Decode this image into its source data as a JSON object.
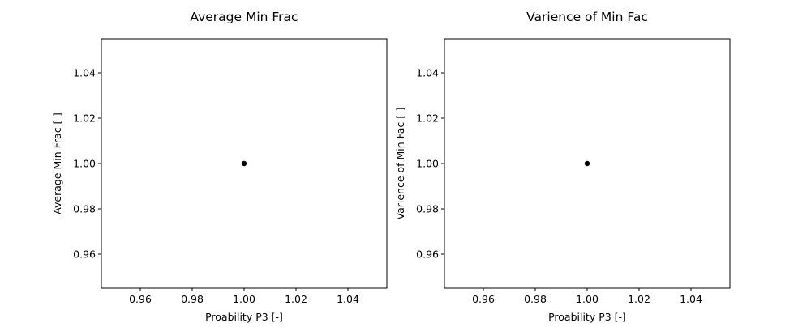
{
  "chart_data": [
    {
      "type": "scatter",
      "title": "Average Min Frac",
      "xlabel": "Proability P3 [-]",
      "ylabel": "Average Min Frac [-]",
      "xlim": [
        0.945,
        1.055
      ],
      "ylim": [
        0.945,
        1.055
      ],
      "xticks": [
        "0.96",
        "0.98",
        "1.00",
        "1.02",
        "1.04"
      ],
      "yticks": [
        "0.96",
        "0.98",
        "1.00",
        "1.02",
        "1.04"
      ],
      "x": [
        1.0
      ],
      "y": [
        1.0
      ],
      "marker_color": "#000000",
      "grid": false
    },
    {
      "type": "scatter",
      "title": "Varience of Min Fac",
      "xlabel": "Proability P3 [-]",
      "ylabel": "Varience of Min Fac [-]",
      "xlim": [
        0.945,
        1.055
      ],
      "ylim": [
        0.945,
        1.055
      ],
      "xticks": [
        "0.96",
        "0.98",
        "1.00",
        "1.02",
        "1.04"
      ],
      "yticks": [
        "0.96",
        "0.98",
        "1.00",
        "1.02",
        "1.04"
      ],
      "x": [
        1.0
      ],
      "y": [
        1.0
      ],
      "marker_color": "#000000",
      "grid": false
    }
  ]
}
